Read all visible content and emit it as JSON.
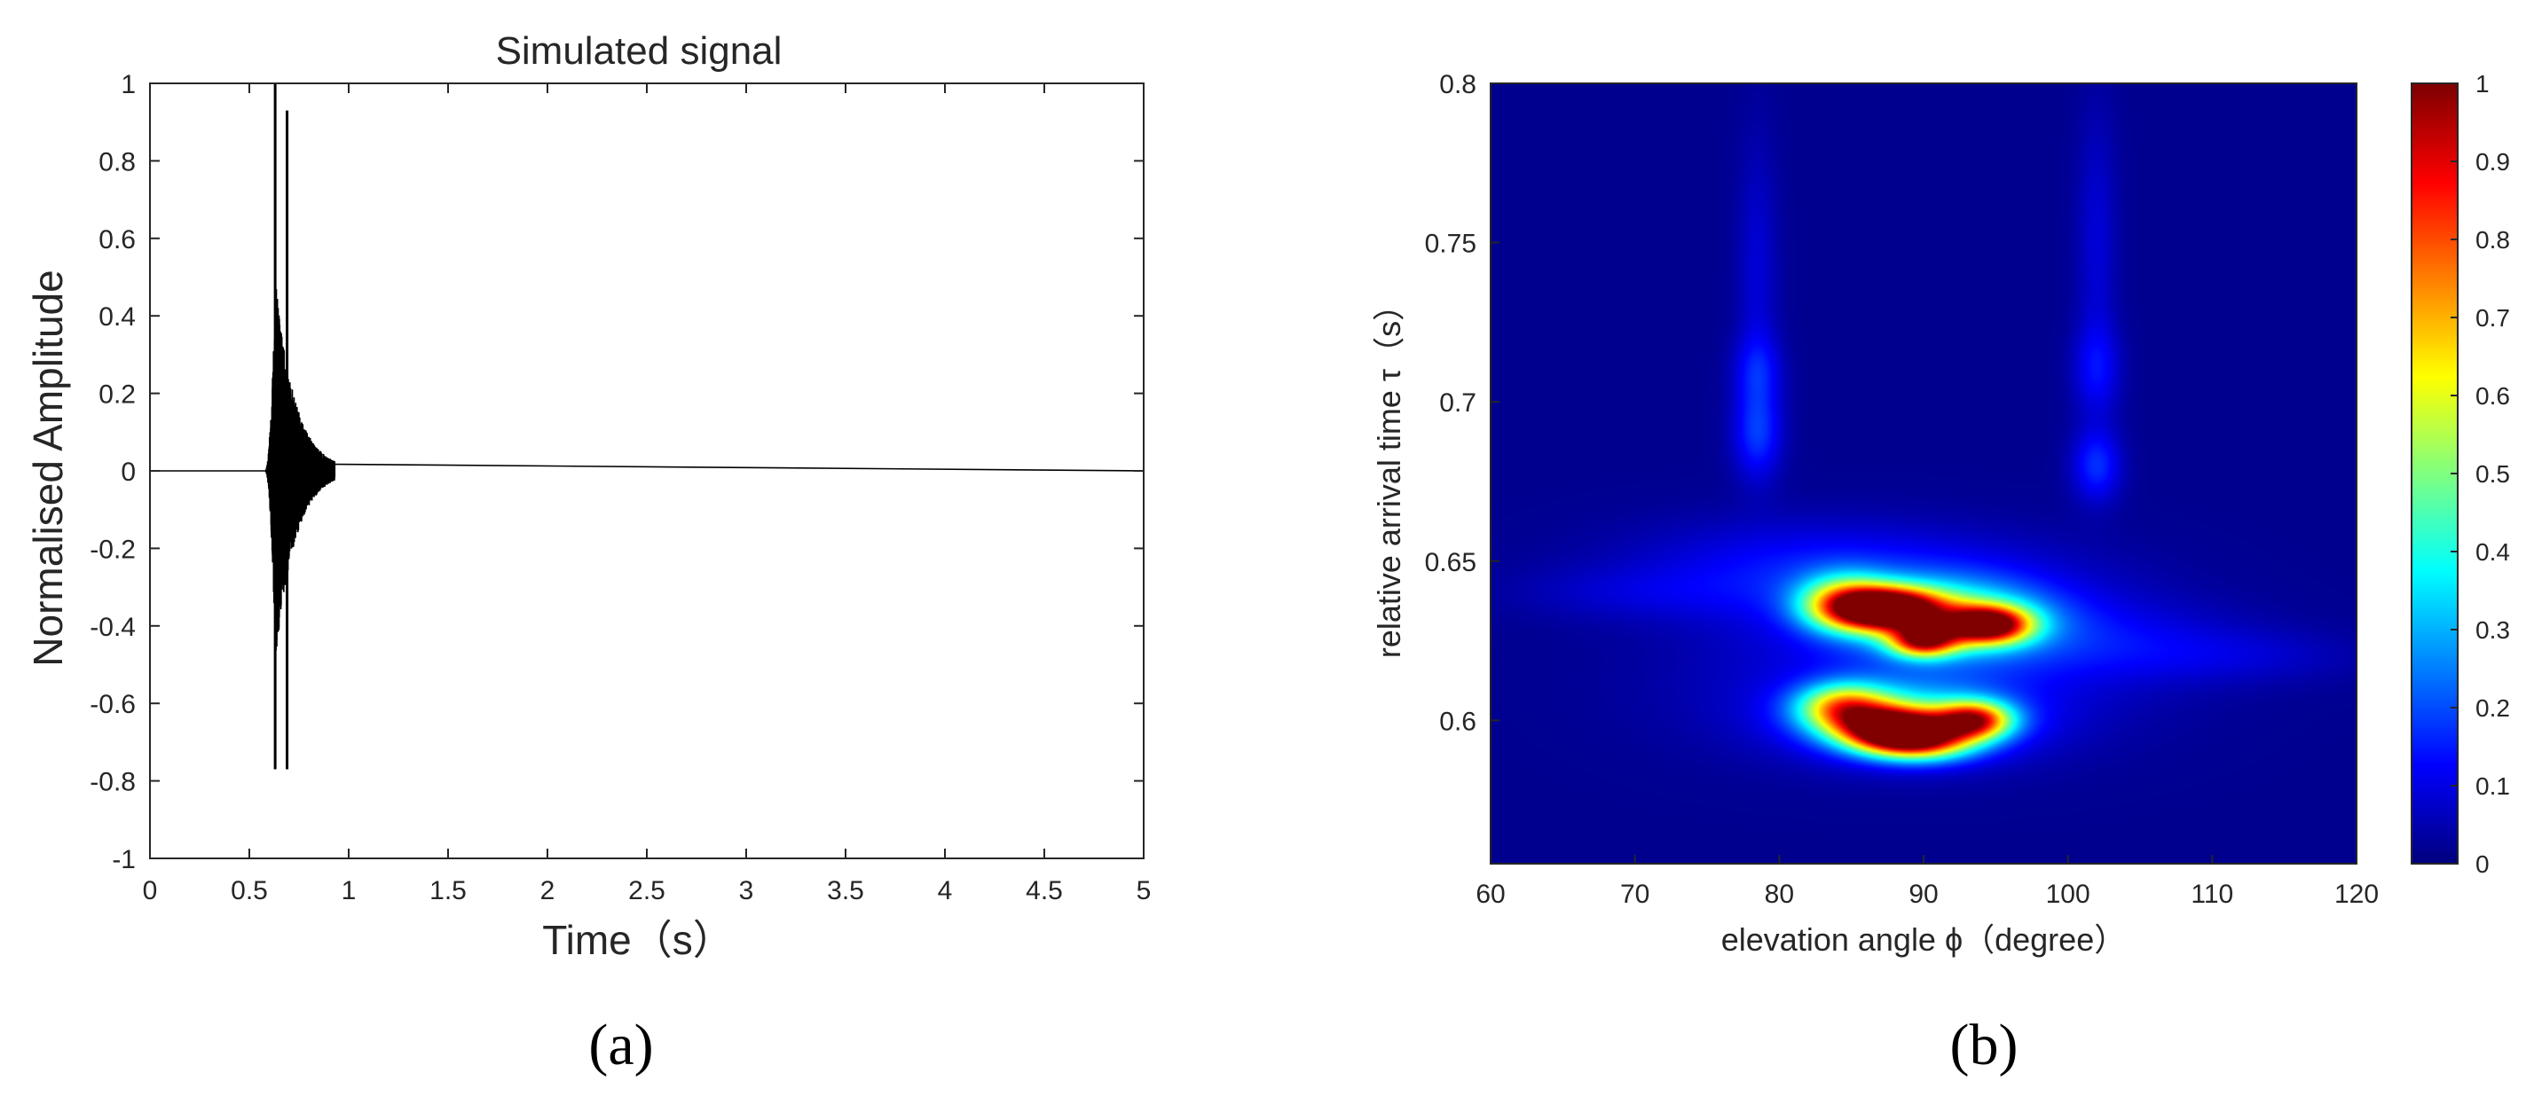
{
  "chart_data": [
    {
      "panel_label": "(a)",
      "type": "line",
      "title": "Simulated signal",
      "xlabel": "Time（s）",
      "ylabel": "Normalised Amplitude",
      "xlim": [
        0,
        5
      ],
      "ylim": [
        -1,
        1
      ],
      "xticks": [
        0,
        0.5,
        1,
        1.5,
        2,
        2.5,
        3,
        3.5,
        4,
        4.5,
        5
      ],
      "yticks": [
        -1,
        -0.8,
        -0.6,
        -0.4,
        -0.2,
        0,
        0.2,
        0.4,
        0.6,
        0.8,
        1
      ],
      "xtick_labels": [
        "0",
        "0.5",
        "1",
        "1.5",
        "2",
        "2.5",
        "3",
        "3.5",
        "4",
        "4.5",
        "5"
      ],
      "ytick_labels": [
        "-1",
        "-0.8",
        "-0.6",
        "-0.4",
        "-0.2",
        "0",
        "0.2",
        "0.4",
        "0.6",
        "0.8",
        "1"
      ],
      "grid": false,
      "line_color": "#000000",
      "series": [
        {
          "burst_start": 0.58,
          "burst_end": 0.93,
          "max_peak": {
            "x": 0.63,
            "y": 1.0
          },
          "min_peak": {
            "x": 0.63,
            "y": -0.77
          },
          "second_peak": {
            "x": 0.69,
            "y": 0.93
          },
          "second_min": {
            "x": 0.69,
            "y": -0.77
          },
          "baseline": 0
        }
      ]
    },
    {
      "panel_label": "(b)",
      "type": "heatmap",
      "xlabel": "elevation angle ϕ（degree）",
      "ylabel": "relative arrival time τ（s）",
      "xlim": [
        60,
        120
      ],
      "ylim": [
        0.555,
        0.8
      ],
      "xticks": [
        60,
        70,
        80,
        90,
        100,
        110,
        120
      ],
      "yticks": [
        0.6,
        0.65,
        0.7,
        0.75,
        0.8
      ],
      "xtick_labels": [
        "60",
        "70",
        "80",
        "90",
        "100",
        "110",
        "120"
      ],
      "ytick_labels": [
        "0.6",
        "0.65",
        "0.7",
        "0.75",
        "0.8"
      ],
      "colormap": "jet",
      "colorbar": {
        "range": [
          0,
          1
        ],
        "ticks": [
          0,
          0.1,
          0.2,
          0.3,
          0.4,
          0.5,
          0.6,
          0.7,
          0.8,
          0.9,
          1
        ],
        "tick_labels": [
          "0",
          "0.1",
          "0.2",
          "0.3",
          "0.4",
          "0.5",
          "0.6",
          "0.7",
          "0.8",
          "0.9",
          "1"
        ],
        "placement": "right"
      },
      "blobs": [
        {
          "x": 87.5,
          "y": 0.635,
          "sx": 2.6,
          "sy": 0.0045,
          "v": 1.0
        },
        {
          "x": 84.5,
          "y": 0.637,
          "sx": 2.2,
          "sy": 0.006,
          "v": 0.45
        },
        {
          "x": 94.5,
          "y": 0.63,
          "sx": 2.0,
          "sy": 0.004,
          "v": 0.85
        },
        {
          "x": 90.0,
          "y": 0.625,
          "sx": 1.6,
          "sy": 0.0035,
          "v": 0.7
        },
        {
          "x": 92.0,
          "y": 0.632,
          "sx": 4.5,
          "sy": 0.008,
          "v": 0.35
        },
        {
          "x": 88.0,
          "y": 0.597,
          "sx": 2.5,
          "sy": 0.0045,
          "v": 0.95
        },
        {
          "x": 84.5,
          "y": 0.604,
          "sx": 2.2,
          "sy": 0.005,
          "v": 0.55
        },
        {
          "x": 93.5,
          "y": 0.6,
          "sx": 1.8,
          "sy": 0.004,
          "v": 0.7
        },
        {
          "x": 90.0,
          "y": 0.593,
          "sx": 2.5,
          "sy": 0.004,
          "v": 0.45
        },
        {
          "x": 89.0,
          "y": 0.6,
          "sx": 5.0,
          "sy": 0.008,
          "v": 0.3
        },
        {
          "x": 89.0,
          "y": 0.64,
          "sx": 9.0,
          "sy": 0.012,
          "v": 0.12
        },
        {
          "x": 89.0,
          "y": 0.61,
          "sx": 10.0,
          "sy": 0.015,
          "v": 0.1
        },
        {
          "x": 80.0,
          "y": 0.65,
          "sx": 8.0,
          "sy": 0.01,
          "v": 0.07
        },
        {
          "x": 102.0,
          "y": 0.625,
          "sx": 7.0,
          "sy": 0.009,
          "v": 0.08
        },
        {
          "x": 70.0,
          "y": 0.64,
          "sx": 6.0,
          "sy": 0.006,
          "v": 0.05
        },
        {
          "x": 112.0,
          "y": 0.62,
          "sx": 6.0,
          "sy": 0.006,
          "v": 0.05
        },
        {
          "x": 78.5,
          "y": 0.69,
          "sx": 1.2,
          "sy": 0.01,
          "v": 0.15
        },
        {
          "x": 78.5,
          "y": 0.71,
          "sx": 1.2,
          "sy": 0.008,
          "v": 0.1
        },
        {
          "x": 78.5,
          "y": 0.74,
          "sx": 1.0,
          "sy": 0.03,
          "v": 0.07
        },
        {
          "x": 102.0,
          "y": 0.68,
          "sx": 1.2,
          "sy": 0.008,
          "v": 0.15
        },
        {
          "x": 102.0,
          "y": 0.71,
          "sx": 1.2,
          "sy": 0.01,
          "v": 0.1
        },
        {
          "x": 102.0,
          "y": 0.75,
          "sx": 1.0,
          "sy": 0.03,
          "v": 0.07
        }
      ]
    }
  ]
}
